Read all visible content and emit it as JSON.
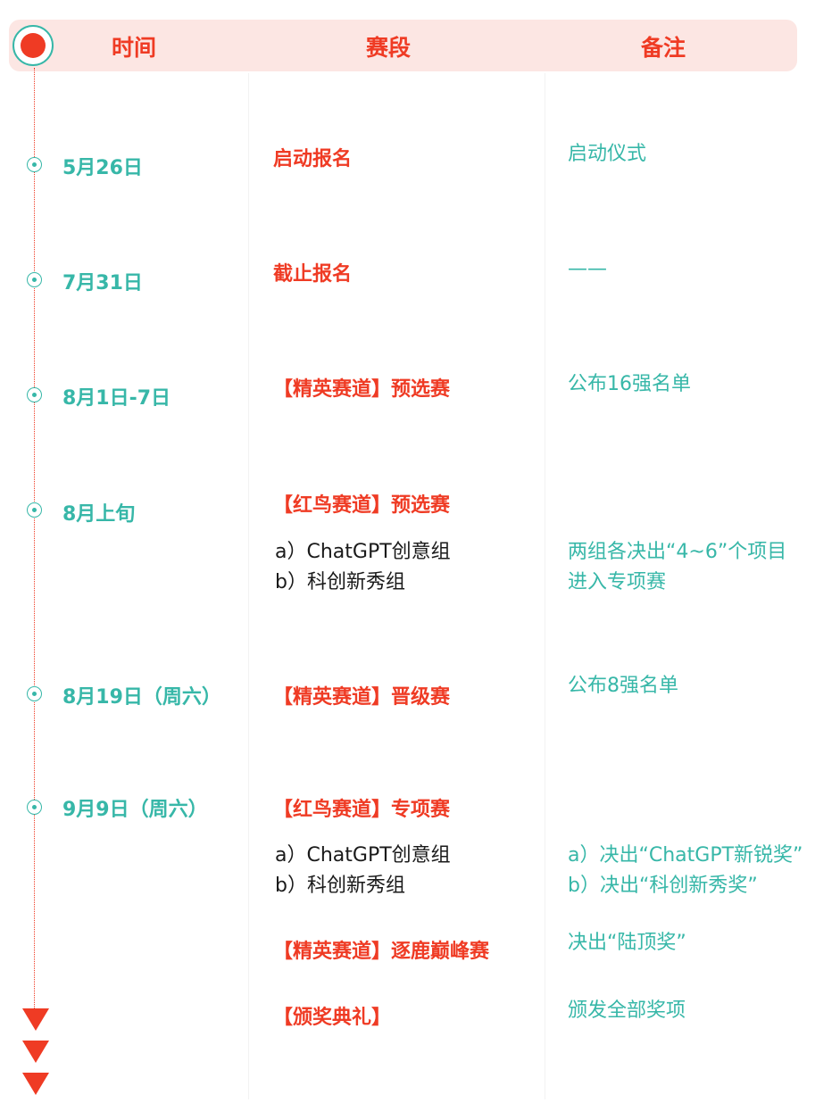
{
  "header": {
    "col_time": "时间",
    "col_stage": "赛段",
    "col_note": "备注"
  },
  "rows": [
    {
      "date": "5月26日",
      "stage": "启动报名",
      "note": "启动仪式"
    },
    {
      "date": "7月31日",
      "stage": "截止报名",
      "note": "——"
    },
    {
      "date": "8月1日-7日",
      "stage": "【精英赛道】预选赛",
      "note": "公布16强名单"
    },
    {
      "date": "8月上旬",
      "stage": "【红鸟赛道】预选赛",
      "subs": [
        "a）ChatGPT创意组",
        "b）科创新秀组"
      ],
      "note_lines": [
        "两组各决出“4~6”个项目",
        "进入专项赛"
      ]
    },
    {
      "date": "8月19日（周六）",
      "stage": "【精英赛道】晋级赛",
      "note": "公布8强名单"
    },
    {
      "date": "9月9日（周六）",
      "stage": "【红鸟赛道】专项赛",
      "subs": [
        "a）ChatGPT创意组",
        "b）科创新秀组"
      ],
      "note_lines": [
        "a）决出“ChatGPT新锐奖”",
        "b）决出“科创新秀奖”"
      ]
    }
  ],
  "extra": [
    {
      "stage": "【精英赛道】逐鹿巅峰赛",
      "note": "决出“陆顶奖”"
    },
    {
      "stage": "【颁奖典礼】",
      "note": "颁发全部奖项"
    }
  ],
  "colors": {
    "accent_red": "#ef3b24",
    "accent_teal": "#37b7a8",
    "header_bg": "#fce6e3"
  }
}
